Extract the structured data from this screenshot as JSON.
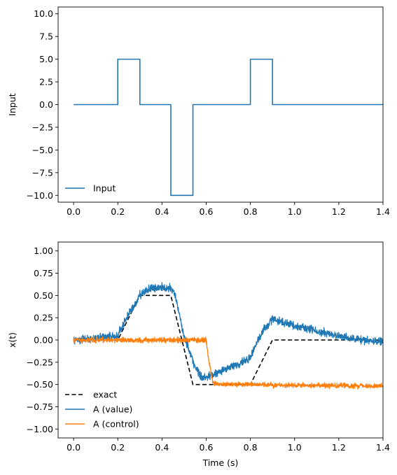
{
  "colors": {
    "blue": "#1f77b4",
    "orange": "#ff7f0e",
    "black": "#000000"
  },
  "chart_data": [
    {
      "type": "line",
      "xlabel": "",
      "ylabel": "Input",
      "xlim": [
        -0.07,
        1.4
      ],
      "ylim": [
        -10.75,
        10.75
      ],
      "xticks": [
        0.0,
        0.2,
        0.4,
        0.6,
        0.8,
        1.0,
        1.2,
        1.4
      ],
      "xtick_labels": [
        "0.0",
        "0.2",
        "0.4",
        "0.6",
        "0.8",
        "1.0",
        "1.2",
        "1.4"
      ],
      "yticks": [
        10.0,
        7.5,
        5.0,
        2.5,
        0.0,
        -2.5,
        -5.0,
        -7.5,
        -10.0
      ],
      "ytick_labels": [
        "10.0",
        "7.5",
        "5.0",
        "2.5",
        "0.0",
        "−2.5",
        "−5.0",
        "−7.5",
        "−10.0"
      ],
      "legend_location": "lower-left",
      "series": [
        {
          "name": "Input",
          "color": "#1f77b4",
          "style": "solid",
          "x": [
            0.0,
            0.2,
            0.2,
            0.3,
            0.3,
            0.44,
            0.44,
            0.54,
            0.54,
            0.8,
            0.8,
            0.9,
            0.9,
            1.4
          ],
          "y": [
            0,
            0,
            5,
            5,
            0,
            0,
            -10,
            -10,
            0,
            0,
            5,
            5,
            0,
            0
          ]
        }
      ]
    },
    {
      "type": "line",
      "xlabel": "Time (s)",
      "ylabel": "x(t)",
      "xlim": [
        -0.07,
        1.4
      ],
      "ylim": [
        -1.1,
        1.1
      ],
      "xticks": [
        0.0,
        0.2,
        0.4,
        0.6,
        0.8,
        1.0,
        1.2,
        1.4
      ],
      "xtick_labels": [
        "0.0",
        "0.2",
        "0.4",
        "0.6",
        "0.8",
        "1.0",
        "1.2",
        "1.4"
      ],
      "yticks": [
        1.0,
        0.75,
        0.5,
        0.25,
        0.0,
        -0.25,
        -0.5,
        -0.75,
        -1.0
      ],
      "ytick_labels": [
        "1.00",
        "0.75",
        "0.50",
        "0.25",
        "0.00",
        "−0.25",
        "−0.50",
        "−0.75",
        "−1.00"
      ],
      "legend_location": "lower-left",
      "series": [
        {
          "name": "exact",
          "color": "#000000",
          "style": "dashed",
          "x": [
            0.0,
            0.2,
            0.3,
            0.44,
            0.54,
            0.8,
            0.9,
            1.4
          ],
          "y": [
            0.0,
            0.0,
            0.5,
            0.5,
            -0.5,
            -0.5,
            0.0,
            0.0
          ]
        },
        {
          "name": "A (value)",
          "color": "#1f77b4",
          "style": "noisy",
          "noise": 0.022,
          "x": [
            0.0,
            0.2,
            0.22,
            0.3,
            0.35,
            0.44,
            0.46,
            0.5,
            0.55,
            0.58,
            0.62,
            0.68,
            0.75,
            0.8,
            0.85,
            0.9,
            0.95,
            1.0,
            1.1,
            1.2,
            1.3,
            1.4
          ],
          "y": [
            0.0,
            0.05,
            0.16,
            0.5,
            0.58,
            0.59,
            0.5,
            0.05,
            -0.3,
            -0.42,
            -0.4,
            -0.33,
            -0.27,
            -0.2,
            0.08,
            0.24,
            0.2,
            0.16,
            0.1,
            0.04,
            0.0,
            -0.02
          ]
        },
        {
          "name": "A (control)",
          "color": "#ff7f0e",
          "style": "noisy",
          "noise": 0.014,
          "x": [
            0.0,
            0.3,
            0.5,
            0.6,
            0.61,
            0.63,
            0.66,
            0.8,
            1.0,
            1.2,
            1.4
          ],
          "y": [
            0.0,
            0.0,
            0.0,
            0.0,
            -0.2,
            -0.48,
            -0.5,
            -0.5,
            -0.51,
            -0.51,
            -0.52
          ]
        }
      ]
    }
  ]
}
